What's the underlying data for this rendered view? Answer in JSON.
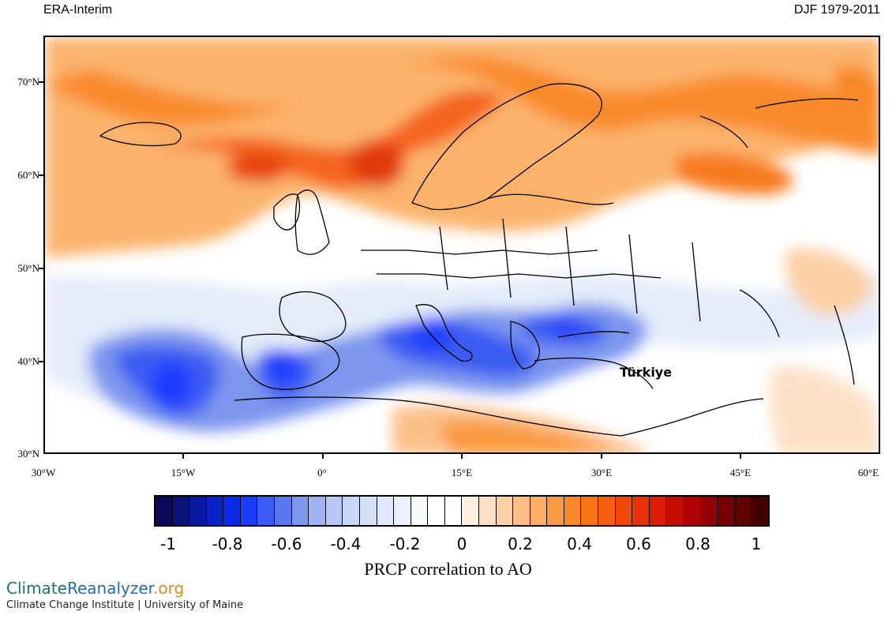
{
  "header": {
    "dataset": "ERA-Interim",
    "period": "DJF 1979-2011"
  },
  "map": {
    "region": "Europe",
    "lat_labels": [
      "70°N",
      "60°N",
      "50°N",
      "40°N",
      "30°N"
    ],
    "lon_labels": [
      "30°W",
      "15°W",
      "0°",
      "15°E",
      "30°E",
      "45°E",
      "60°E"
    ],
    "place_label": "Türkiye"
  },
  "colorbar": {
    "title": "PRCP correlation to AO",
    "tick_labels": [
      "-1",
      "-0.8",
      "-0.6",
      "-0.4",
      "-0.2",
      "0",
      "0.2",
      "0.4",
      "0.6",
      "0.8",
      "1"
    ],
    "range": [
      -1,
      1
    ],
    "colors": [
      "#0a0a5a",
      "#0a127a",
      "#0a1aa0",
      "#0a22c8",
      "#0a2ae8",
      "#1a3cff",
      "#3a5cf2",
      "#5a78ec",
      "#7d96ee",
      "#9fb2f2",
      "#b6c8f4",
      "#c6d6f6",
      "#d4e0f8",
      "#e0e9fa",
      "#ebf1fc",
      "#f6f9fe",
      "#ffffff",
      "#ffffff",
      "#feeee0",
      "#fde0c6",
      "#fcd0a6",
      "#fbbe84",
      "#fbad62",
      "#fa9a40",
      "#f98828",
      "#f77414",
      "#f45e0c",
      "#f04808",
      "#e83206",
      "#dc1c04",
      "#c80c02",
      "#b00202",
      "#940000",
      "#760000",
      "#5c0000",
      "#440000"
    ]
  },
  "footer": {
    "logo": {
      "part1": "Climate",
      "part2": "Reanalyzer",
      "part3": ".org"
    },
    "credit": "Climate Change Institute | University of Maine"
  }
}
